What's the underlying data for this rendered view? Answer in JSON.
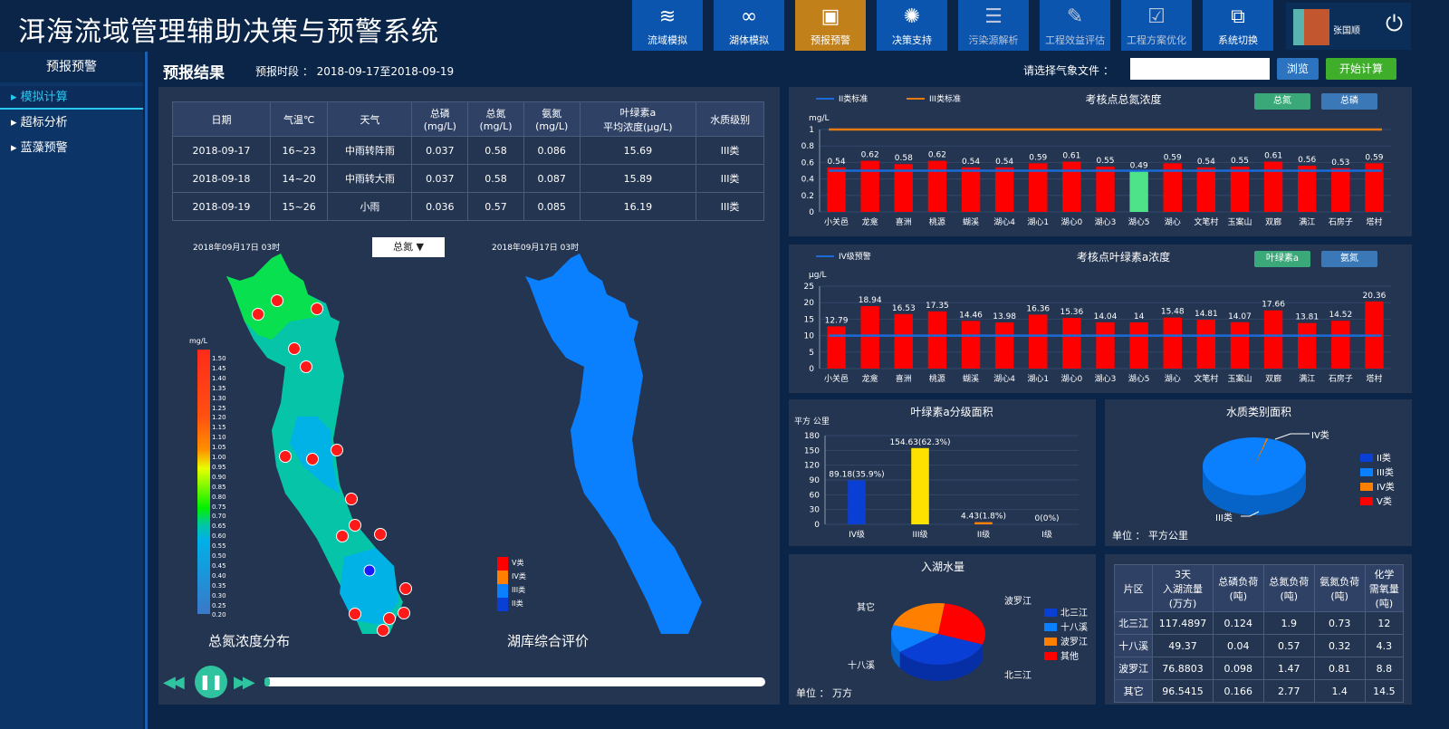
{
  "app": {
    "title": "洱海流域管理辅助决策与预警系统",
    "user": "张国顺"
  },
  "nav": [
    {
      "label": "流域模拟",
      "icon": "river-icon"
    },
    {
      "label": "湖体模拟",
      "icon": "lake-icon"
    },
    {
      "label": "预报预警",
      "icon": "warning-icon",
      "active": true
    },
    {
      "label": "决策支持",
      "icon": "decision-icon"
    },
    {
      "label": "污染源解析",
      "icon": "list-icon"
    },
    {
      "label": "工程效益评估",
      "icon": "edit-icon"
    },
    {
      "label": "工程方案优化",
      "icon": "clipboard-check-icon"
    },
    {
      "label": "系统切换",
      "icon": "switch-icon"
    }
  ],
  "sidebar": {
    "title": "预报预警",
    "items": [
      {
        "label": "模拟计算",
        "active": true
      },
      {
        "label": "超标分析"
      },
      {
        "label": "蓝藻预警"
      }
    ]
  },
  "result": {
    "title": "预报结果",
    "range": "预报时段 ： 2018-09-17至2018-09-19",
    "file_label": "请选择气象文件 ：",
    "file_value": "",
    "browse": "浏览",
    "start": "开始计算"
  },
  "forecast_table": {
    "headers": [
      "日期",
      "气温℃",
      "天气",
      "总磷\n(mg/L)",
      "总氮\n(mg/L)",
      "氨氮\n(mg/L)",
      "叶绿素a\n平均浓度(μg/L)",
      "水质级别"
    ],
    "rows": [
      [
        "2018-09-17",
        "16~23",
        "中雨转阵雨",
        "0.037",
        "0.58",
        "0.086",
        "15.69",
        "III类"
      ],
      [
        "2018-09-18",
        "14~20",
        "中雨转大雨",
        "0.037",
        "0.58",
        "0.087",
        "15.89",
        "III类"
      ],
      [
        "2018-09-19",
        "15~26",
        "小雨",
        "0.036",
        "0.57",
        "0.085",
        "16.19",
        "III类"
      ]
    ]
  },
  "maps": {
    "timestamp_left": "2018年09月17日  03时",
    "timestamp_right": "2018年09月17日  03时",
    "selector": "总氮",
    "unit": "mg/L",
    "colorbar_ticks": [
      "1.50",
      "1.45",
      "1.40",
      "1.35",
      "1.30",
      "1.25",
      "1.20",
      "1.15",
      "1.10",
      "1.05",
      "1.00",
      "0.95",
      "0.90",
      "0.85",
      "0.80",
      "0.75",
      "0.70",
      "0.65",
      "0.60",
      "0.55",
      "0.50",
      "0.45",
      "0.40",
      "0.35",
      "0.30",
      "0.25",
      "0.20"
    ],
    "left_caption": "总氮浓度分布",
    "right_caption": "湖库综合评价",
    "class_legend": [
      {
        "label": "V类",
        "color": "#ff0000"
      },
      {
        "label": "IV类",
        "color": "#ff8000"
      },
      {
        "label": "III类",
        "color": "#0a80ff"
      },
      {
        "label": "II类",
        "color": "#0a3fd6"
      }
    ]
  },
  "playback": {
    "progress": 0.01
  },
  "chart_data": [
    {
      "type": "bar",
      "title": "考核点总氮浓度",
      "ylabel": "mg/L",
      "ylim": [
        0,
        1
      ],
      "yticks": [
        "0",
        "0.2",
        "0.4",
        "0.6",
        "0.8",
        "1"
      ],
      "categories": [
        "小关邑",
        "龙龛",
        "喜洲",
        "桃源",
        "蝴溪",
        "湖心4",
        "湖心1",
        "湖心0",
        "湖心3",
        "湖心5",
        "湖心",
        "文笔村",
        "玉案山",
        "双廊",
        "满江",
        "石房子",
        "塔村"
      ],
      "values": [
        0.54,
        0.62,
        0.58,
        0.62,
        0.54,
        0.54,
        0.59,
        0.61,
        0.55,
        0.49,
        0.59,
        0.54,
        0.55,
        0.61,
        0.56,
        0.53,
        0.59
      ],
      "reference_lines": [
        {
          "name": "II类标准",
          "value": 0.5,
          "color": "#1a6ad8"
        },
        {
          "name": "III类标准",
          "value": 1,
          "color": "#e57a10"
        }
      ],
      "buttons": [
        "总氮",
        "总磷"
      ],
      "bar_color": "#ff0000",
      "highlight_color": "#4ee388"
    },
    {
      "type": "bar",
      "title": "考核点叶绿素a浓度",
      "ylabel": "μg/L",
      "ylim": [
        0,
        25
      ],
      "yticks": [
        "0",
        "5",
        "10",
        "15",
        "20",
        "25"
      ],
      "categories": [
        "小关邑",
        "龙龛",
        "喜洲",
        "桃源",
        "蝴溪",
        "湖心4",
        "湖心1",
        "湖心0",
        "湖心3",
        "湖心5",
        "湖心",
        "文笔村",
        "玉案山",
        "双廊",
        "满江",
        "石房子",
        "塔村"
      ],
      "values": [
        12.79,
        18.94,
        16.53,
        17.35,
        14.46,
        13.98,
        16.36,
        15.36,
        14.04,
        14.0,
        15.48,
        14.81,
        14.07,
        17.66,
        13.81,
        14.52,
        20.36
      ],
      "reference_lines": [
        {
          "name": "IV级预警",
          "value": 10,
          "color": "#1a6ad8"
        }
      ],
      "buttons": [
        "叶绿素a",
        "氨氮"
      ],
      "bar_color": "#ff0000"
    },
    {
      "type": "bar",
      "title": "叶绿素a分级面积",
      "ylabel": "平方\n公里",
      "ylim": [
        0,
        180
      ],
      "yticks": [
        "0",
        "30",
        "60",
        "90",
        "120",
        "150",
        "180"
      ],
      "categories": [
        "IV级",
        "III级",
        "II级",
        "I级"
      ],
      "values": [
        89.18,
        154.63,
        4.43,
        0
      ],
      "labels": [
        "89.18(35.9%)",
        "154.63(62.3%)",
        "4.43(1.8%)",
        "0(0%)"
      ],
      "colors": [
        "#0a3fd6",
        "#ffe100",
        "#ff8000",
        "#0a80ff"
      ]
    },
    {
      "type": "pie",
      "title": "水质类别面积",
      "unit_label": "单位 ：  平方公里",
      "slices": [
        {
          "name": "II类",
          "value": 0,
          "color": "#0a3fd6"
        },
        {
          "name": "III类",
          "value": 99.5,
          "color": "#0a80ff"
        },
        {
          "name": "IV类",
          "value": 0.5,
          "color": "#ff8000"
        },
        {
          "name": "V类",
          "value": 0,
          "color": "#ff0000"
        }
      ],
      "callouts": [
        "IV类",
        "III类"
      ]
    },
    {
      "type": "pie",
      "title": "入湖水量",
      "unit_label": "单位 ：  万方",
      "slices": [
        {
          "name": "北三江",
          "value": 117.4897,
          "color": "#0a3fd6"
        },
        {
          "name": "十八溪",
          "value": 49.37,
          "color": "#0a80ff"
        },
        {
          "name": "波罗江",
          "value": 76.8803,
          "color": "#ff8000"
        },
        {
          "name": "其他",
          "value": 96.5415,
          "color": "#ff0000"
        }
      ],
      "callouts": [
        "北三江",
        "十八溪",
        "波罗江",
        "其它"
      ]
    }
  ],
  "load_table": {
    "headers": [
      "片区",
      "3天\n入湖流量\n(万方)",
      "总磷负荷\n(吨)",
      "总氮负荷\n(吨)",
      "氨氮负荷\n(吨)",
      "化学\n需氧量\n(吨)"
    ],
    "rows": [
      [
        "北三江",
        "117.4897",
        "0.124",
        "1.9",
        "0.73",
        "12"
      ],
      [
        "十八溪",
        "49.37",
        "0.04",
        "0.57",
        "0.32",
        "4.3"
      ],
      [
        "波罗江",
        "76.8803",
        "0.098",
        "1.47",
        "0.81",
        "8.8"
      ],
      [
        "其它",
        "96.5415",
        "0.166",
        "2.77",
        "1.4",
        "14.5"
      ]
    ]
  }
}
